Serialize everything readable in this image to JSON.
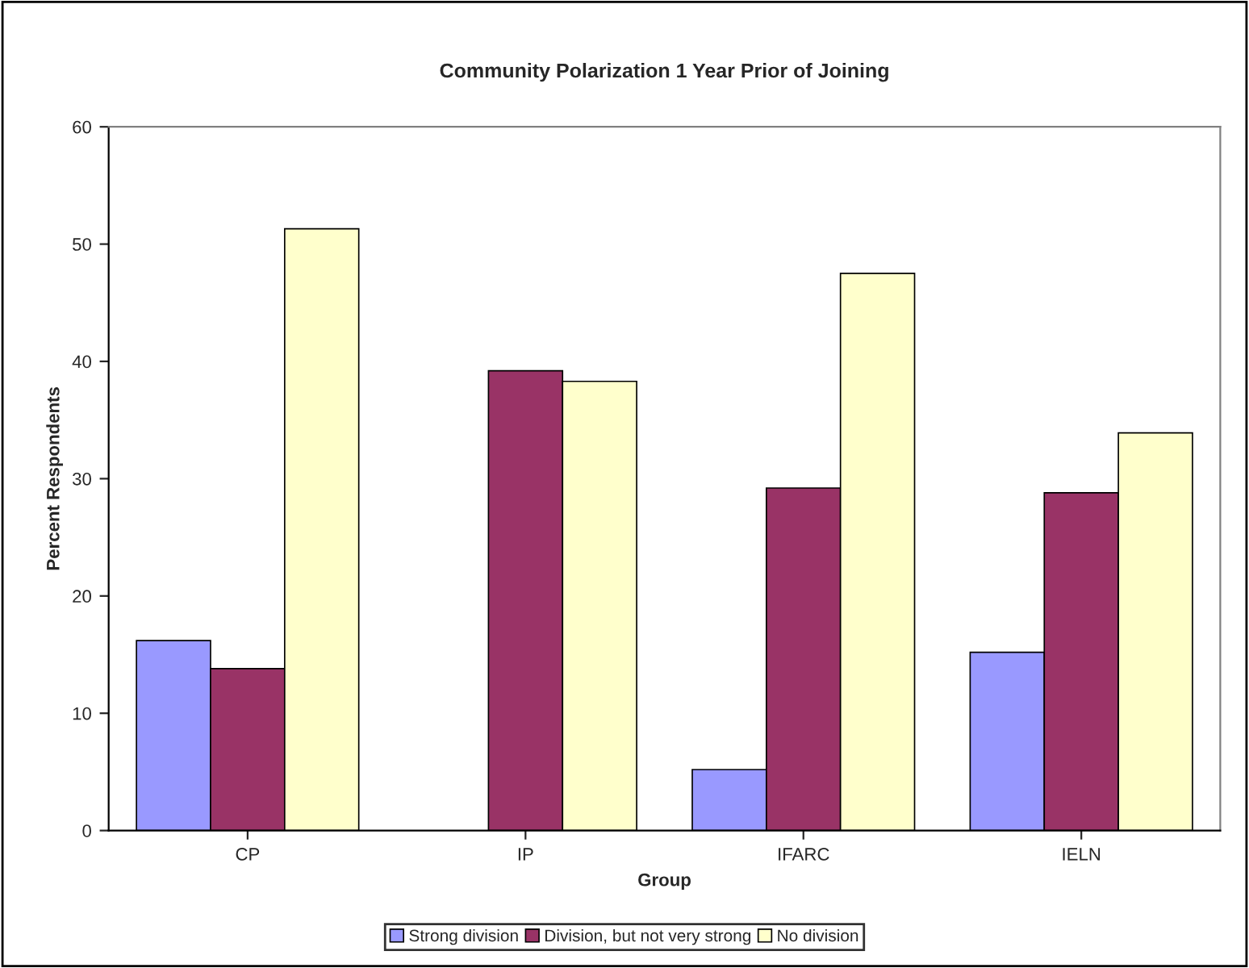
{
  "chart_data": {
    "type": "bar",
    "title": "Community Polarization 1 Year Prior of Joining",
    "xlabel": "Group",
    "ylabel": "Percent Respondents",
    "categories": [
      "CP",
      "IP",
      "IFARC",
      "IELN"
    ],
    "series": [
      {
        "name": "Strong division",
        "color": "#9999ff",
        "values": [
          16.2,
          null,
          5.2,
          15.2
        ]
      },
      {
        "name": "Division, but not very strong",
        "color": "#993366",
        "values": [
          13.8,
          39.2,
          29.2,
          28.8
        ]
      },
      {
        "name": "No division",
        "color": "#ffffcc",
        "values": [
          51.3,
          38.3,
          47.5,
          33.9
        ]
      }
    ],
    "ylim": [
      0,
      60
    ],
    "yticks": [
      0,
      10,
      20,
      30,
      40,
      50,
      60
    ],
    "grid": false,
    "legend": "bottom"
  }
}
